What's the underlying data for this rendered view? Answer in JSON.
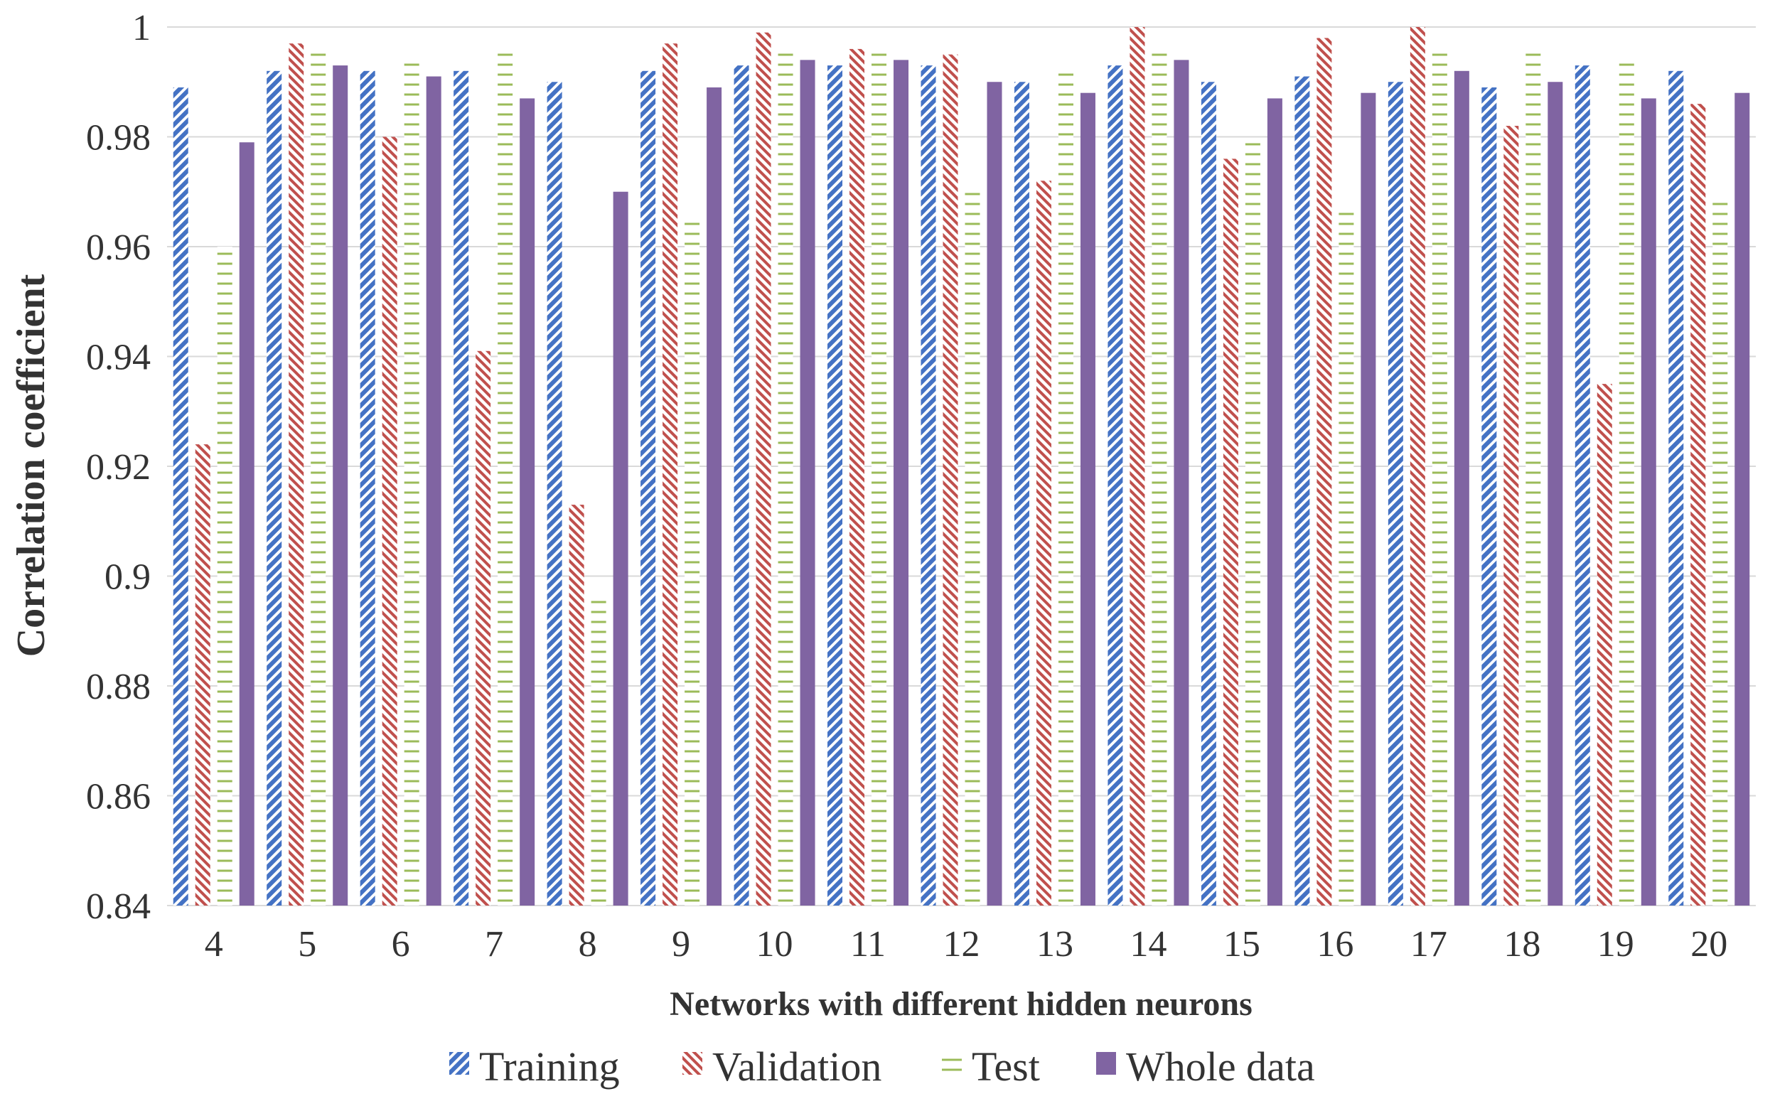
{
  "chart_data": {
    "type": "bar",
    "xlabel": "Networks with different hidden neurons",
    "ylabel": "Correlation coefficient",
    "ylim": [
      0.84,
      1.0
    ],
    "yticks": [
      "0.84",
      "0.86",
      "0.88",
      "0.9",
      "0.92",
      "0.94",
      "0.96",
      "0.98",
      "1"
    ],
    "grid": true,
    "legend_position": "bottom",
    "categories": [
      "4",
      "5",
      "6",
      "7",
      "8",
      "9",
      "10",
      "11",
      "12",
      "13",
      "14",
      "15",
      "16",
      "17",
      "18",
      "19",
      "20"
    ],
    "series": [
      {
        "name": "Training",
        "pattern": "diagonal-forward",
        "color": "#4472C4",
        "values": [
          0.989,
          0.992,
          0.992,
          0.992,
          0.99,
          0.992,
          0.993,
          0.993,
          0.993,
          0.99,
          0.993,
          0.99,
          0.991,
          0.99,
          0.989,
          0.993,
          0.992
        ]
      },
      {
        "name": "Validation",
        "pattern": "diagonal-backward",
        "color": "#C0504D",
        "values": [
          0.924,
          0.997,
          0.98,
          0.941,
          0.913,
          0.997,
          0.999,
          0.996,
          0.995,
          0.972,
          1.0,
          0.976,
          0.998,
          1.0,
          0.982,
          0.935,
          0.986
        ]
      },
      {
        "name": "Test",
        "pattern": "horizontal-lines",
        "color": "#9BBB59",
        "values": [
          0.96,
          0.996,
          0.994,
          0.996,
          0.896,
          0.965,
          0.996,
          0.996,
          0.971,
          0.992,
          0.996,
          0.979,
          0.967,
          0.996,
          0.996,
          0.994,
          0.968
        ]
      },
      {
        "name": "Whole data",
        "pattern": "solid",
        "color": "#8064A2",
        "values": [
          0.979,
          0.993,
          0.991,
          0.987,
          0.97,
          0.989,
          0.994,
          0.994,
          0.99,
          0.988,
          0.994,
          0.987,
          0.988,
          0.992,
          0.99,
          0.987,
          0.988
        ]
      }
    ]
  }
}
